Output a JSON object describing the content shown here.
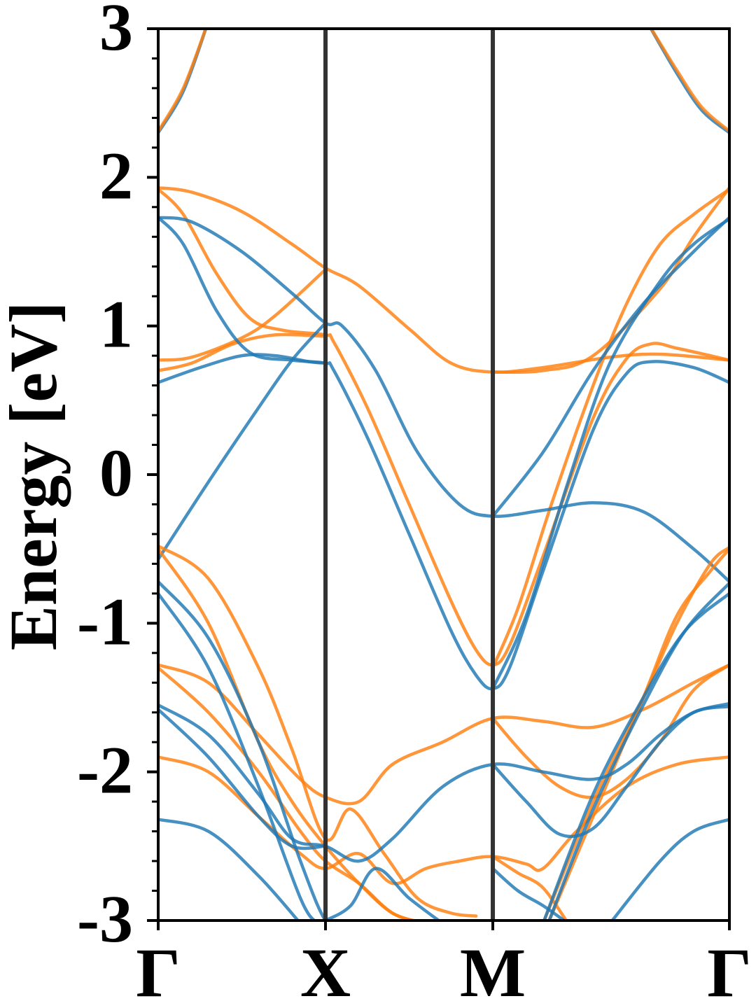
{
  "chart_data": {
    "type": "line",
    "ylabel": "Energy [eV]",
    "xlabel": "",
    "ylim": [
      -3,
      3
    ],
    "y_ticks": [
      "-3",
      "-2",
      "-1",
      "0",
      "1",
      "2",
      "3"
    ],
    "y_tick_values": [
      -3,
      -2,
      -1,
      0,
      1,
      2,
      3
    ],
    "y_minor_step": 0.2,
    "k_points": [
      {
        "label": "Γ",
        "x": 0.0
      },
      {
        "label": "X",
        "x": 1.0
      },
      {
        "label": "M",
        "x": 2.0
      },
      {
        "label": "Γ",
        "x": 3.414
      }
    ],
    "colors": {
      "spin_a": "#1f77b4",
      "spin_b": "#ff7f0e",
      "divider": "#333333",
      "axis": "#000000"
    },
    "series": [
      {
        "color": "spin_a",
        "points": [
          [
            0,
            2.3
          ],
          [
            0.15,
            2.58
          ],
          [
            0.3,
            3.05
          ]
        ]
      },
      {
        "color": "spin_a",
        "points": [
          [
            2.92,
            3.05
          ],
          [
            3.1,
            2.7
          ],
          [
            3.25,
            2.45
          ],
          [
            3.414,
            2.3
          ]
        ]
      },
      {
        "color": "spin_b",
        "points": [
          [
            0,
            2.31
          ],
          [
            0.15,
            2.6
          ],
          [
            0.3,
            3.05
          ]
        ]
      },
      {
        "color": "spin_b",
        "points": [
          [
            2.92,
            3.05
          ],
          [
            3.1,
            2.72
          ],
          [
            3.25,
            2.47
          ],
          [
            3.414,
            2.31
          ]
        ]
      },
      {
        "color": "spin_b",
        "points": [
          [
            0,
            1.93
          ],
          [
            0.2,
            1.9
          ],
          [
            0.5,
            1.77
          ],
          [
            0.8,
            1.55
          ],
          [
            1.0,
            1.39
          ],
          [
            1.2,
            1.27
          ],
          [
            1.5,
            0.98
          ],
          [
            1.75,
            0.75
          ],
          [
            2.0,
            0.69
          ],
          [
            2.3,
            0.72
          ],
          [
            2.7,
            0.79
          ],
          [
            3.0,
            0.81
          ],
          [
            3.414,
            0.77
          ]
        ]
      },
      {
        "color": "spin_b",
        "points": [
          [
            0,
            1.92
          ],
          [
            0.15,
            1.75
          ],
          [
            0.35,
            1.35
          ],
          [
            0.55,
            1.05
          ],
          [
            0.75,
            0.97
          ],
          [
            1.0,
            0.94
          ],
          [
            1.05,
            0.89
          ],
          [
            1.25,
            0.45
          ],
          [
            1.5,
            -0.2
          ],
          [
            1.75,
            -0.85
          ],
          [
            1.9,
            -1.18
          ],
          [
            2.0,
            -1.28
          ],
          [
            2.1,
            -1.15
          ],
          [
            2.3,
            -0.55
          ],
          [
            2.6,
            0.38
          ],
          [
            2.8,
            0.78
          ],
          [
            2.95,
            0.88
          ],
          [
            3.1,
            0.85
          ],
          [
            3.3,
            0.8
          ],
          [
            3.414,
            0.77
          ]
        ]
      },
      {
        "color": "spin_b",
        "points": [
          [
            0,
            0.77
          ],
          [
            0.2,
            0.79
          ],
          [
            0.5,
            0.92
          ],
          [
            0.7,
            1.07
          ],
          [
            1.0,
            1.38
          ]
        ]
      },
      {
        "color": "spin_b",
        "points": [
          [
            0,
            0.7
          ],
          [
            0.2,
            0.75
          ],
          [
            0.45,
            0.88
          ],
          [
            0.7,
            0.94
          ],
          [
            1.0,
            0.93
          ]
        ]
      },
      {
        "color": "spin_b",
        "points": [
          [
            2.0,
            0.69
          ],
          [
            2.3,
            0.7
          ],
          [
            2.6,
            0.8
          ],
          [
            3.0,
            1.25
          ],
          [
            3.2,
            1.6
          ],
          [
            3.414,
            1.93
          ]
        ]
      },
      {
        "color": "spin_b",
        "points": [
          [
            2.0,
            -1.3
          ],
          [
            2.15,
            -0.9
          ],
          [
            2.35,
            -0.2
          ],
          [
            2.6,
            0.6
          ],
          [
            2.8,
            1.15
          ],
          [
            3.0,
            1.55
          ],
          [
            3.2,
            1.75
          ],
          [
            3.414,
            1.92
          ]
        ]
      },
      {
        "color": "spin_a",
        "points": [
          [
            0,
            1.73
          ],
          [
            0.2,
            1.7
          ],
          [
            0.5,
            1.5
          ],
          [
            0.8,
            1.22
          ],
          [
            1.0,
            1.02
          ],
          [
            1.1,
            1.0
          ],
          [
            1.3,
            0.7
          ],
          [
            1.55,
            0.15
          ],
          [
            1.8,
            -0.2
          ],
          [
            2.0,
            -0.28
          ],
          [
            2.3,
            -0.24
          ],
          [
            2.6,
            -0.19
          ],
          [
            2.9,
            -0.25
          ],
          [
            3.2,
            -0.5
          ],
          [
            3.414,
            -0.72
          ]
        ]
      },
      {
        "color": "spin_a",
        "points": [
          [
            0,
            1.73
          ],
          [
            0.15,
            1.55
          ],
          [
            0.35,
            1.1
          ],
          [
            0.55,
            0.82
          ],
          [
            0.8,
            0.77
          ],
          [
            1.0,
            0.75
          ],
          [
            1.05,
            0.7
          ],
          [
            1.25,
            0.25
          ],
          [
            1.5,
            -0.4
          ],
          [
            1.75,
            -1.05
          ],
          [
            1.9,
            -1.35
          ],
          [
            2.0,
            -1.44
          ],
          [
            2.1,
            -1.3
          ],
          [
            2.3,
            -0.65
          ],
          [
            2.6,
            0.3
          ],
          [
            2.8,
            0.68
          ],
          [
            2.95,
            0.76
          ],
          [
            3.2,
            0.72
          ],
          [
            3.414,
            0.62
          ]
        ]
      },
      {
        "color": "spin_a",
        "points": [
          [
            0,
            0.62
          ],
          [
            0.25,
            0.72
          ],
          [
            0.5,
            0.8
          ],
          [
            0.7,
            0.8
          ],
          [
            0.9,
            0.76
          ],
          [
            1.0,
            0.75
          ]
        ]
      },
      {
        "color": "spin_a",
        "points": [
          [
            0,
            -0.57
          ],
          [
            0.3,
            -0.05
          ],
          [
            0.6,
            0.45
          ],
          [
            0.8,
            0.77
          ],
          [
            1.0,
            1.02
          ]
        ]
      },
      {
        "color": "spin_a",
        "points": [
          [
            2.0,
            -0.28
          ],
          [
            2.3,
            0.15
          ],
          [
            2.6,
            0.7
          ],
          [
            2.9,
            1.15
          ],
          [
            3.2,
            1.5
          ],
          [
            3.414,
            1.73
          ]
        ]
      },
      {
        "color": "spin_a",
        "points": [
          [
            2.0,
            -1.44
          ],
          [
            2.2,
            -0.95
          ],
          [
            2.45,
            -0.05
          ],
          [
            2.7,
            0.75
          ],
          [
            3.0,
            1.3
          ],
          [
            3.2,
            1.55
          ],
          [
            3.414,
            1.72
          ]
        ]
      },
      {
        "color": "spin_b",
        "points": [
          [
            0,
            -0.48
          ],
          [
            0.3,
            -0.7
          ],
          [
            0.6,
            -1.3
          ],
          [
            0.8,
            -1.85
          ],
          [
            1.0,
            -2.45
          ],
          [
            1.15,
            -2.25
          ],
          [
            1.35,
            -2.55
          ],
          [
            1.55,
            -2.85
          ],
          [
            1.75,
            -2.95
          ],
          [
            1.9,
            -2.97
          ]
        ]
      },
      {
        "color": "spin_b",
        "points": [
          [
            0,
            -0.5
          ],
          [
            0.3,
            -1.0
          ],
          [
            0.6,
            -1.8
          ],
          [
            0.8,
            -2.2
          ],
          [
            1.0,
            -2.5
          ],
          [
            1.2,
            -2.75
          ],
          [
            1.4,
            -2.95
          ],
          [
            1.6,
            -3.02
          ]
        ]
      },
      {
        "color": "spin_b",
        "points": [
          [
            0,
            -1.28
          ],
          [
            0.3,
            -1.4
          ],
          [
            0.6,
            -1.75
          ],
          [
            0.85,
            -2.05
          ],
          [
            1.0,
            -2.17
          ],
          [
            1.2,
            -2.2
          ],
          [
            1.4,
            -1.95
          ],
          [
            1.7,
            -1.8
          ],
          [
            2.0,
            -1.64
          ],
          [
            2.3,
            -1.66
          ],
          [
            2.6,
            -1.7
          ],
          [
            2.9,
            -1.58
          ],
          [
            3.2,
            -1.4
          ],
          [
            3.414,
            -1.28
          ]
        ]
      },
      {
        "color": "spin_b",
        "points": [
          [
            0,
            -1.3
          ],
          [
            0.3,
            -1.6
          ],
          [
            0.6,
            -2.0
          ],
          [
            0.85,
            -2.4
          ],
          [
            1.0,
            -2.6
          ],
          [
            1.2,
            -2.75
          ],
          [
            1.4,
            -2.95
          ],
          [
            1.6,
            -3.02
          ]
        ]
      },
      {
        "color": "spin_b",
        "points": [
          [
            0,
            -1.9
          ],
          [
            0.3,
            -2.0
          ],
          [
            0.6,
            -2.3
          ],
          [
            0.85,
            -2.55
          ],
          [
            1.0,
            -2.65
          ],
          [
            1.2,
            -2.55
          ],
          [
            1.4,
            -2.75
          ],
          [
            1.6,
            -2.65
          ],
          [
            1.8,
            -2.6
          ],
          [
            2.0,
            -2.57
          ],
          [
            2.2,
            -2.62
          ],
          [
            2.3,
            -2.65
          ],
          [
            2.5,
            -2.4
          ],
          [
            2.8,
            -2.1
          ],
          [
            3.1,
            -1.95
          ],
          [
            3.414,
            -1.9
          ]
        ]
      },
      {
        "color": "spin_b",
        "points": [
          [
            2.0,
            -1.64
          ],
          [
            2.2,
            -1.9
          ],
          [
            2.4,
            -2.1
          ],
          [
            2.6,
            -2.17
          ],
          [
            2.8,
            -2.05
          ],
          [
            3.0,
            -1.8
          ],
          [
            3.2,
            -1.45
          ],
          [
            3.414,
            -1.28
          ]
        ]
      },
      {
        "color": "spin_b",
        "points": [
          [
            2.0,
            -2.57
          ],
          [
            2.15,
            -2.68
          ],
          [
            2.3,
            -2.78
          ],
          [
            2.45,
            -3.02
          ]
        ]
      },
      {
        "color": "spin_b",
        "points": [
          [
            2.3,
            -3.02
          ],
          [
            2.6,
            -2.2
          ],
          [
            2.9,
            -1.5
          ],
          [
            3.1,
            -1.0
          ],
          [
            3.3,
            -0.6
          ],
          [
            3.414,
            -0.49
          ]
        ]
      },
      {
        "color": "spin_b",
        "points": [
          [
            2.33,
            -3.02
          ],
          [
            2.6,
            -2.3
          ],
          [
            2.9,
            -1.5
          ],
          [
            3.1,
            -0.95
          ],
          [
            3.3,
            -0.65
          ],
          [
            3.414,
            -0.5
          ]
        ]
      },
      {
        "color": "spin_a",
        "points": [
          [
            0,
            -0.72
          ],
          [
            0.3,
            -1.1
          ],
          [
            0.6,
            -1.8
          ],
          [
            0.85,
            -2.6
          ],
          [
            1.0,
            -3.0
          ],
          [
            1.1,
            -3.02
          ]
        ]
      },
      {
        "color": "spin_a",
        "points": [
          [
            0,
            -0.8
          ],
          [
            0.3,
            -1.3
          ],
          [
            0.6,
            -2.1
          ],
          [
            0.85,
            -2.85
          ],
          [
            0.95,
            -3.02
          ]
        ]
      },
      {
        "color": "spin_a",
        "points": [
          [
            0,
            -1.55
          ],
          [
            0.3,
            -1.75
          ],
          [
            0.6,
            -2.15
          ],
          [
            0.8,
            -2.45
          ],
          [
            1.0,
            -2.5
          ],
          [
            1.2,
            -2.6
          ],
          [
            1.4,
            -2.45
          ],
          [
            1.7,
            -2.1
          ],
          [
            2.0,
            -1.95
          ],
          [
            2.3,
            -2.0
          ],
          [
            2.6,
            -2.05
          ],
          [
            2.8,
            -1.95
          ],
          [
            3.0,
            -1.75
          ],
          [
            3.2,
            -1.6
          ],
          [
            3.414,
            -1.54
          ]
        ]
      },
      {
        "color": "spin_a",
        "points": [
          [
            0,
            -1.58
          ],
          [
            0.3,
            -1.9
          ],
          [
            0.6,
            -2.3
          ],
          [
            0.8,
            -2.5
          ],
          [
            1.0,
            -2.5
          ]
        ]
      },
      {
        "color": "spin_a",
        "points": [
          [
            0,
            -2.32
          ],
          [
            0.3,
            -2.4
          ],
          [
            0.6,
            -2.7
          ],
          [
            0.85,
            -3.02
          ]
        ]
      },
      {
        "color": "spin_a",
        "points": [
          [
            1.0,
            -3.0
          ],
          [
            1.15,
            -2.9
          ],
          [
            1.3,
            -2.65
          ],
          [
            1.5,
            -2.85
          ],
          [
            1.7,
            -3.02
          ]
        ]
      },
      {
        "color": "spin_a",
        "points": [
          [
            2.0,
            -1.95
          ],
          [
            2.2,
            -2.2
          ],
          [
            2.4,
            -2.42
          ],
          [
            2.6,
            -2.38
          ],
          [
            2.8,
            -2.1
          ],
          [
            3.0,
            -1.8
          ],
          [
            3.2,
            -1.6
          ],
          [
            3.414,
            -1.56
          ]
        ]
      },
      {
        "color": "spin_a",
        "points": [
          [
            2.0,
            -2.65
          ],
          [
            2.15,
            -2.8
          ],
          [
            2.3,
            -2.9
          ],
          [
            2.45,
            -3.02
          ]
        ]
      },
      {
        "color": "spin_a",
        "points": [
          [
            2.7,
            -3.02
          ],
          [
            3.0,
            -2.6
          ],
          [
            3.2,
            -2.4
          ],
          [
            3.414,
            -2.32
          ]
        ]
      },
      {
        "color": "spin_a",
        "points": [
          [
            2.3,
            -3.02
          ],
          [
            2.6,
            -2.15
          ],
          [
            2.9,
            -1.5
          ],
          [
            3.15,
            -1.05
          ],
          [
            3.414,
            -0.8
          ]
        ]
      },
      {
        "color": "spin_a",
        "points": [
          [
            2.33,
            -3.02
          ],
          [
            2.6,
            -2.25
          ],
          [
            2.9,
            -1.55
          ],
          [
            3.15,
            -1.05
          ],
          [
            3.414,
            -0.73
          ]
        ]
      }
    ]
  }
}
